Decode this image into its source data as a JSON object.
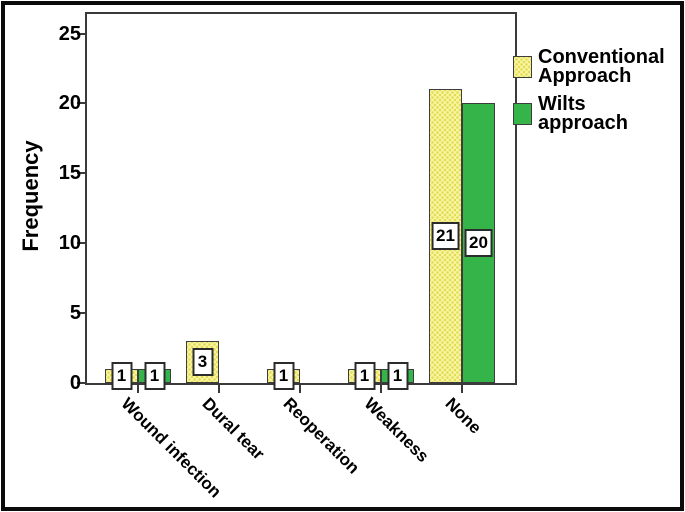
{
  "figure": {
    "background": "#ffffff",
    "border_color": "#0b0b0b",
    "axis_color": "#3a3a3a",
    "bar_border_color": "#3d3d3d"
  },
  "chart_data": {
    "type": "bar",
    "title": "",
    "xlabel": "",
    "ylabel": "Frequency",
    "ylim": [
      0,
      26.4
    ],
    "yticks": [
      0,
      5,
      10,
      15,
      20,
      25
    ],
    "grid": false,
    "legend_position": "right-of-plot-top",
    "bar_value_labels": true,
    "categories": [
      "Wound infection",
      "Dural tear",
      "Reoperation",
      "Weakness",
      "None"
    ],
    "series": [
      {
        "name": "Conventional Approach",
        "legend_label": "Conventional\nApproach",
        "pattern": "dots",
        "fill": "#F8F5A3",
        "dot_color": "#E4DC55",
        "values": [
          1,
          3,
          1,
          1,
          21
        ]
      },
      {
        "name": "Wilts approach",
        "legend_label": "Wilts\napproach",
        "pattern": "solid",
        "fill": "#35B44A",
        "dot_color": "",
        "values": [
          1,
          0,
          0,
          1,
          20
        ]
      }
    ]
  }
}
